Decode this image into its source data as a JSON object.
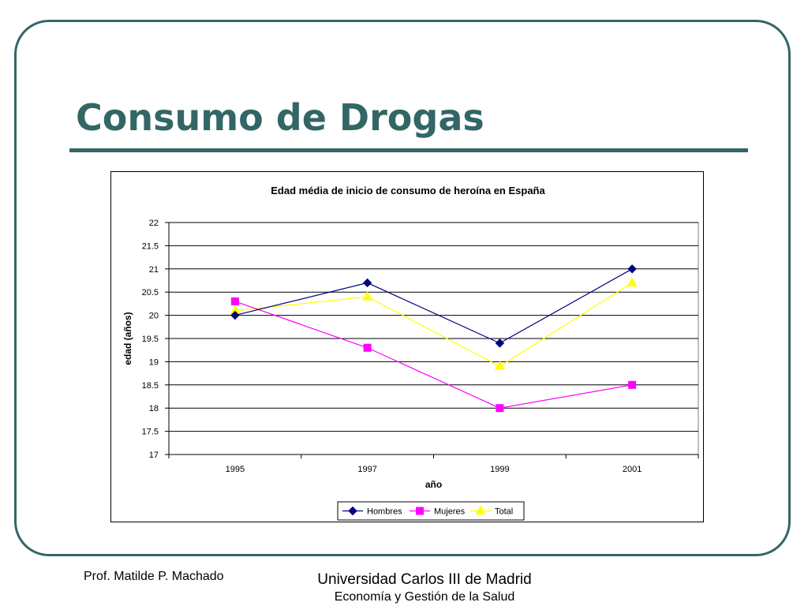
{
  "slide": {
    "title": "Consumo de Drogas",
    "footer_author": "Prof. Matilde P. Machado",
    "footer_university": "Universidad Carlos III de Madrid",
    "footer_course": "Economía y Gestión de la Salud"
  },
  "chart_data": {
    "type": "line",
    "title": "Edad média de inicio de consumo de heroína en España",
    "xlabel": "año",
    "ylabel": "edad (años)",
    "categories": [
      "1995",
      "1997",
      "1999",
      "2001"
    ],
    "ylim": [
      17,
      22
    ],
    "yticks": [
      "17",
      "17.5",
      "18",
      "18.5",
      "19",
      "19.5",
      "20",
      "20.5",
      "21",
      "21.5",
      "22"
    ],
    "grid": true,
    "legend_position": "bottom",
    "series": [
      {
        "name": "Hombres",
        "values": [
          20,
          20.7,
          19.4,
          21
        ],
        "color": "#000080",
        "marker": "diamond"
      },
      {
        "name": "Mujeres",
        "values": [
          20.3,
          19.3,
          18,
          18.5
        ],
        "color": "#FF00FF",
        "marker": "square"
      },
      {
        "name": "Total",
        "values": [
          20.1,
          20.4,
          18.9,
          20.7
        ],
        "color": "#FFFF00",
        "marker": "triangle"
      }
    ]
  }
}
